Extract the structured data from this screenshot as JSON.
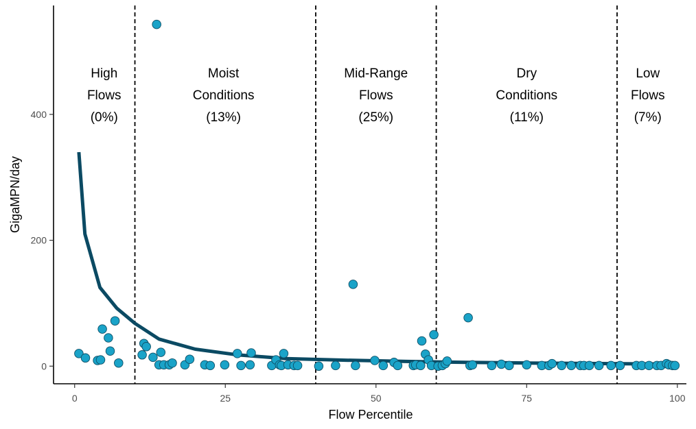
{
  "chart_data": {
    "type": "scatter",
    "xlabel": "Flow Percentile",
    "ylabel": "GigaMPN/day",
    "xlim": [
      -3.5,
      101.5
    ],
    "ylim": [
      -28,
      573
    ],
    "x_ticks": [
      0,
      25,
      50,
      75,
      100
    ],
    "y_ticks": [
      0,
      200,
      400
    ],
    "grid": false,
    "colors": {
      "point_fill": "#1aa3c8",
      "point_stroke": "#0e4f66",
      "curve": "#0b4a63",
      "divider": "#000000"
    },
    "dividers": [
      10,
      40,
      60,
      90
    ],
    "zones": [
      {
        "lines": [
          "High",
          "Flows",
          "(0%)"
        ],
        "x": 4.9
      },
      {
        "lines": [
          "Moist",
          "Conditions",
          "(13%)"
        ],
        "x": 24.7
      },
      {
        "lines": [
          "Mid-Range",
          "Flows",
          "(25%)"
        ],
        "x": 50
      },
      {
        "lines": [
          "Dry",
          "Conditions",
          "(11%)"
        ],
        "x": 75
      },
      {
        "lines": [
          "Low",
          "Flows",
          "(7%)"
        ],
        "x": 95.1
      }
    ],
    "curve": {
      "x": [
        0.7,
        1.7,
        4.2,
        7,
        10,
        14,
        20,
        27,
        35,
        45,
        55,
        65,
        75,
        85,
        95,
        100
      ],
      "y": [
        340,
        210,
        125,
        92,
        68,
        43,
        27,
        18,
        12,
        9.5,
        7.5,
        6,
        5,
        4.2,
        3.6,
        3.3
      ]
    },
    "points": {
      "x": [
        0.7,
        1.8,
        3.8,
        4.3,
        4.6,
        5.6,
        5.9,
        6.7,
        7.3,
        11.2,
        11.5,
        11.9,
        13,
        13.6,
        14,
        14.3,
        14.8,
        15.7,
        16.2,
        18.3,
        19.1,
        21.6,
        22.5,
        24.9,
        27,
        27.6,
        29.1,
        29.3,
        32.7,
        33.4,
        34,
        34.3,
        34.7,
        35.4,
        36.4,
        37,
        40.5,
        43.3,
        46.2,
        46.6,
        49.8,
        51.2,
        53,
        53.6,
        56.2,
        56.6,
        57.4,
        57.6,
        58.2,
        58.7,
        59.2,
        59.6,
        60.3,
        61,
        61.5,
        61.8,
        65.3,
        65.6,
        66,
        69.2,
        70.8,
        72.1,
        75,
        77.5,
        78.7,
        79.2,
        80.8,
        82.4,
        83.9,
        84.5,
        85.4,
        87,
        89,
        90.5,
        93.2,
        94.1,
        95.3,
        96.6,
        97.3,
        98.2,
        98.6,
        99.2,
        99.6
      ],
      "y": [
        20,
        13,
        9,
        10,
        59,
        45,
        24,
        72,
        5,
        18,
        36,
        31,
        14,
        543,
        2,
        22,
        2,
        2,
        5,
        2,
        11,
        2,
        1,
        2,
        20,
        1,
        2,
        21,
        1,
        10,
        2,
        1,
        20,
        2,
        1,
        1,
        0,
        1,
        130,
        1,
        9,
        1,
        6,
        1,
        1,
        2,
        1,
        40,
        19,
        10,
        1,
        50,
        0,
        1,
        4,
        8,
        77,
        1,
        2,
        1,
        3,
        1,
        2,
        1,
        1,
        4,
        1,
        1,
        1,
        1,
        1,
        1,
        1,
        1,
        1,
        1,
        1,
        1,
        1,
        4,
        2,
        1,
        1
      ]
    }
  }
}
